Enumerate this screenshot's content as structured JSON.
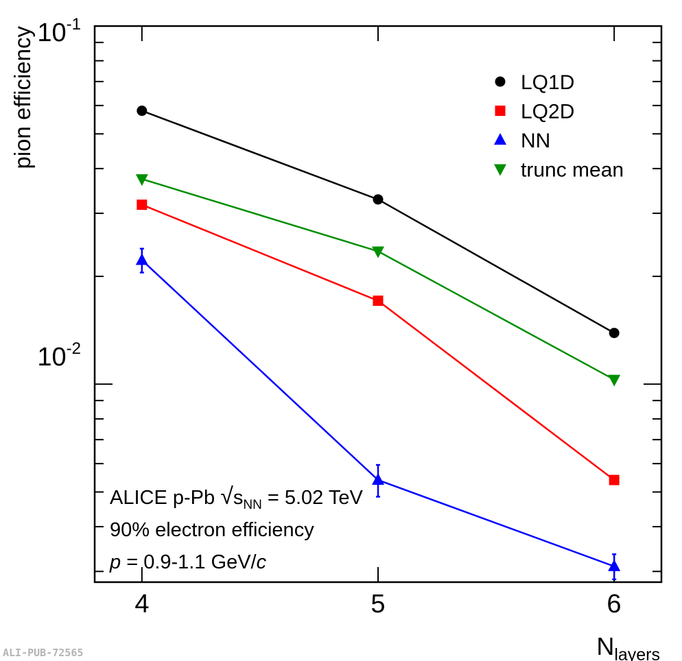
{
  "chart_data": {
    "type": "line",
    "yscale": "log",
    "x": [
      4,
      5,
      6
    ],
    "xlim": [
      3.8,
      6.2
    ],
    "ylim": [
      0.0028,
      0.1
    ],
    "xticks": [
      "4",
      "5",
      "6"
    ],
    "ylabel": "pion efficiency",
    "xlabel": {
      "main": "N",
      "sub": "layers"
    },
    "yticks": [
      {
        "base": "10",
        "exp": "-1",
        "value": 0.1
      },
      {
        "base": "10",
        "exp": "-2",
        "value": 0.01
      }
    ],
    "series": [
      {
        "name": "LQ1D",
        "color": "#000000",
        "marker": "circle",
        "values": [
          0.058,
          0.0328,
          0.0139
        ],
        "errors": [
          0,
          0,
          0
        ]
      },
      {
        "name": "LQ2D",
        "color": "#ff0000",
        "marker": "square",
        "values": [
          0.0317,
          0.0171,
          0.0054
        ],
        "errors": [
          0,
          0,
          0
        ]
      },
      {
        "name": "NN",
        "color": "#0000ff",
        "marker": "triangle-up",
        "values": [
          0.0222,
          0.0054,
          0.0031
        ],
        "errors": [
          0.0017,
          0.00055,
          0.00025
        ]
      },
      {
        "name": "trunc mean",
        "color": "#008f00",
        "marker": "triangle-down",
        "values": [
          0.0374,
          0.0235,
          0.0103
        ],
        "errors": [
          0,
          0,
          0
        ]
      }
    ],
    "annotations": {
      "line1": {
        "prefix": "ALICE p-Pb ",
        "sqrt_sym": "√",
        "var": "s",
        "sub": "NN",
        "suffix": " = 5.02 TeV"
      },
      "line2": "90% electron efficiency",
      "line3": {
        "var": "p",
        "mid": " = 0.9-1.1 GeV/",
        "unit": "c"
      }
    },
    "watermark": "ALI-PUB-72565"
  }
}
